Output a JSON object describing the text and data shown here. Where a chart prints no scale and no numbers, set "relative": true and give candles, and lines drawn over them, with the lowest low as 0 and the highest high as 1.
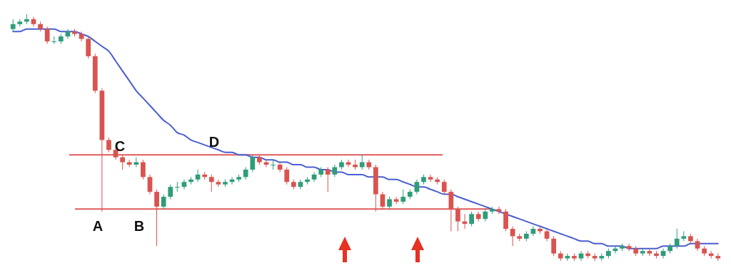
{
  "chart_data": {
    "type": "candlestick",
    "relative": true,
    "categories": [
      null,
      null,
      null,
      null,
      null,
      null,
      null,
      null,
      null,
      null,
      null,
      null,
      null,
      null,
      null,
      null,
      null,
      null,
      null,
      null,
      null,
      null,
      null,
      null,
      null,
      null,
      null,
      null,
      null,
      null,
      null,
      null,
      null,
      null,
      null,
      null,
      null,
      null,
      null,
      null,
      null,
      null,
      null,
      null,
      null,
      null,
      null,
      null,
      null,
      null,
      null,
      null,
      null,
      null,
      null,
      null,
      null,
      null,
      null,
      null,
      null,
      null,
      null,
      null,
      null,
      null,
      null,
      null,
      null,
      null,
      null,
      null,
      null,
      null,
      null,
      null,
      null,
      null,
      null,
      null,
      null,
      null,
      null,
      null,
      null,
      null,
      null,
      null,
      null,
      null,
      null,
      null,
      null,
      null,
      null,
      null,
      null,
      null,
      null,
      null,
      null,
      null,
      null,
      null
    ],
    "colors": [
      "#2e9d7a",
      "#2e9d7a",
      "#2e9d7a",
      "#d9534f",
      "#d9534f",
      "#d9534f",
      "#2e9d7a",
      "#2e9d7a",
      "#2e9d7a",
      "#d9534f",
      "#d9534f",
      "#d9534f",
      "#d9534f",
      "#d9534f",
      "#d9534f",
      "#d9534f",
      "#d9534f",
      "#d9534f",
      "#2e9d7a",
      "#d9534f",
      "#d9534f",
      "#d9534f",
      "#2e9d7a",
      "#2e9d7a",
      "#2e9d7a",
      "#2e9d7a",
      "#2e9d7a",
      "#2e9d7a",
      "#d9534f",
      "#d9534f",
      "#d9534f",
      "#2e9d7a",
      "#2e9d7a",
      "#2e9d7a",
      "#2e9d7a",
      "#2e9d7a",
      "#d9534f",
      "#d9534f",
      "#2e9d7a",
      "#d9534f",
      "#d9534f",
      "#d9534f",
      "#2e9d7a",
      "#2e9d7a",
      "#2e9d7a",
      "#2e9d7a",
      "#d9534f",
      "#2e9d7a",
      "#2e9d7a",
      "#d9534f",
      "#d9534f",
      "#2e9d7a",
      "#d9534f",
      "#d9534f",
      "#d9534f",
      "#2e9d7a",
      "#d9534f",
      "#2e9d7a",
      "#2e9d7a",
      "#2e9d7a",
      "#2e9d7a",
      "#d9534f",
      "#d9534f",
      "#d9534f",
      "#d9534f",
      "#d9534f",
      "#d9534f",
      "#2e9d7a",
      "#d9534f",
      "#2e9d7a",
      "#2e9d7a",
      "#d9534f",
      "#d9534f",
      "#d9534f",
      "#d9534f",
      "#2e9d7a",
      "#2e9d7a",
      "#d9534f",
      "#d9534f",
      "#d9534f",
      "#d9534f",
      "#2e9d7a",
      "#d9534f",
      "#2e9d7a",
      "#d9534f",
      "#d9534f",
      "#2e9d7a",
      "#2e9d7a",
      "#2e9d7a",
      "#2e9d7a",
      "#d9534f",
      "#d9534f",
      "#2e9d7a",
      "#d9534f",
      "#d9534f",
      "#2e9d7a",
      "#2e9d7a",
      "#2e9d7a",
      "#2e9d7a",
      "#d9534f",
      "#d9534f",
      "#d9534f",
      "#d9534f",
      "#d9534f"
    ],
    "ohlc": [
      [
        0.94,
        0.98,
        0.93,
        0.96
      ],
      [
        0.96,
        0.98,
        0.95,
        0.97
      ],
      [
        0.97,
        1.0,
        0.96,
        0.98
      ],
      [
        0.98,
        0.99,
        0.95,
        0.96
      ],
      [
        0.96,
        0.97,
        0.93,
        0.94
      ],
      [
        0.94,
        0.95,
        0.88,
        0.89
      ],
      [
        0.89,
        0.91,
        0.88,
        0.89
      ],
      [
        0.89,
        0.92,
        0.88,
        0.91
      ],
      [
        0.91,
        0.94,
        0.9,
        0.93
      ],
      [
        0.93,
        0.94,
        0.91,
        0.92
      ],
      [
        0.92,
        0.93,
        0.89,
        0.9
      ],
      [
        0.9,
        0.91,
        0.82,
        0.83
      ],
      [
        0.83,
        0.84,
        0.68,
        0.69
      ],
      [
        0.69,
        0.7,
        0.2,
        0.49
      ],
      [
        0.49,
        0.5,
        0.44,
        0.45
      ],
      [
        0.45,
        0.46,
        0.41,
        0.42
      ],
      [
        0.42,
        0.43,
        0.37,
        0.4
      ],
      [
        0.4,
        0.41,
        0.38,
        0.39
      ],
      [
        0.39,
        0.42,
        0.38,
        0.4
      ],
      [
        0.4,
        0.41,
        0.33,
        0.34
      ],
      [
        0.34,
        0.35,
        0.27,
        0.28
      ],
      [
        0.28,
        0.29,
        0.06,
        0.22
      ],
      [
        0.22,
        0.27,
        0.21,
        0.26
      ],
      [
        0.26,
        0.31,
        0.25,
        0.3
      ],
      [
        0.3,
        0.32,
        0.28,
        0.3
      ],
      [
        0.3,
        0.33,
        0.29,
        0.32
      ],
      [
        0.32,
        0.34,
        0.31,
        0.33
      ],
      [
        0.33,
        0.37,
        0.32,
        0.35
      ],
      [
        0.35,
        0.36,
        0.33,
        0.34
      ],
      [
        0.34,
        0.35,
        0.28,
        0.32
      ],
      [
        0.32,
        0.33,
        0.3,
        0.31
      ],
      [
        0.31,
        0.33,
        0.3,
        0.32
      ],
      [
        0.32,
        0.34,
        0.31,
        0.33
      ],
      [
        0.33,
        0.35,
        0.32,
        0.34
      ],
      [
        0.34,
        0.38,
        0.33,
        0.37
      ],
      [
        0.37,
        0.43,
        0.36,
        0.42
      ],
      [
        0.42,
        0.43,
        0.39,
        0.4
      ],
      [
        0.4,
        0.41,
        0.38,
        0.39
      ],
      [
        0.39,
        0.41,
        0.37,
        0.39
      ],
      [
        0.39,
        0.4,
        0.36,
        0.37
      ],
      [
        0.37,
        0.38,
        0.31,
        0.32
      ],
      [
        0.32,
        0.33,
        0.29,
        0.3
      ],
      [
        0.3,
        0.33,
        0.29,
        0.32
      ],
      [
        0.32,
        0.34,
        0.31,
        0.33
      ],
      [
        0.33,
        0.36,
        0.32,
        0.35
      ],
      [
        0.35,
        0.38,
        0.34,
        0.37
      ],
      [
        0.37,
        0.38,
        0.28,
        0.35
      ],
      [
        0.35,
        0.39,
        0.34,
        0.38
      ],
      [
        0.38,
        0.41,
        0.37,
        0.4
      ],
      [
        0.4,
        0.41,
        0.38,
        0.39
      ],
      [
        0.39,
        0.41,
        0.37,
        0.38
      ],
      [
        0.38,
        0.43,
        0.37,
        0.4
      ],
      [
        0.4,
        0.41,
        0.37,
        0.38
      ],
      [
        0.38,
        0.39,
        0.2,
        0.27
      ],
      [
        0.27,
        0.28,
        0.21,
        0.22
      ],
      [
        0.22,
        0.26,
        0.21,
        0.25
      ],
      [
        0.25,
        0.26,
        0.23,
        0.24
      ],
      [
        0.24,
        0.29,
        0.23,
        0.26
      ],
      [
        0.26,
        0.29,
        0.25,
        0.28
      ],
      [
        0.28,
        0.33,
        0.27,
        0.32
      ],
      [
        0.32,
        0.35,
        0.31,
        0.34
      ],
      [
        0.34,
        0.35,
        0.32,
        0.33
      ],
      [
        0.33,
        0.34,
        0.31,
        0.32
      ],
      [
        0.32,
        0.33,
        0.27,
        0.28
      ],
      [
        0.28,
        0.29,
        0.12,
        0.21
      ],
      [
        0.21,
        0.22,
        0.12,
        0.16
      ],
      [
        0.16,
        0.19,
        0.13,
        0.15
      ],
      [
        0.15,
        0.2,
        0.14,
        0.19
      ],
      [
        0.19,
        0.2,
        0.16,
        0.17
      ],
      [
        0.17,
        0.21,
        0.16,
        0.2
      ],
      [
        0.2,
        0.22,
        0.19,
        0.21
      ],
      [
        0.21,
        0.22,
        0.19,
        0.2
      ],
      [
        0.2,
        0.21,
        0.12,
        0.13
      ],
      [
        0.13,
        0.14,
        0.06,
        0.1
      ],
      [
        0.1,
        0.11,
        0.08,
        0.09
      ],
      [
        0.09,
        0.12,
        0.08,
        0.11
      ],
      [
        0.11,
        0.14,
        0.1,
        0.13
      ],
      [
        0.13,
        0.14,
        0.11,
        0.12
      ],
      [
        0.12,
        0.13,
        0.08,
        0.09
      ],
      [
        0.09,
        0.1,
        0.02,
        0.03
      ],
      [
        0.03,
        0.04,
        0.0,
        0.01
      ],
      [
        0.01,
        0.03,
        0.0,
        0.02
      ],
      [
        0.02,
        0.03,
        0.0,
        0.01
      ],
      [
        0.01,
        0.04,
        0.0,
        0.03
      ],
      [
        0.03,
        0.04,
        0.01,
        0.02
      ],
      [
        0.02,
        0.03,
        0.0,
        0.01
      ],
      [
        0.01,
        0.03,
        0.0,
        0.02
      ],
      [
        0.02,
        0.05,
        0.01,
        0.04
      ],
      [
        0.04,
        0.06,
        0.03,
        0.05
      ],
      [
        0.05,
        0.07,
        0.04,
        0.06
      ],
      [
        0.06,
        0.07,
        0.04,
        0.05
      ],
      [
        0.05,
        0.06,
        0.02,
        0.03
      ],
      [
        0.03,
        0.05,
        0.02,
        0.04
      ],
      [
        0.04,
        0.05,
        0.02,
        0.03
      ],
      [
        0.03,
        0.04,
        0.01,
        0.02
      ],
      [
        0.02,
        0.05,
        0.01,
        0.04
      ],
      [
        0.04,
        0.07,
        0.03,
        0.06
      ],
      [
        0.06,
        0.13,
        0.05,
        0.09
      ],
      [
        0.09,
        0.12,
        0.08,
        0.1
      ],
      [
        0.1,
        0.11,
        0.07,
        0.08
      ],
      [
        0.08,
        0.09,
        0.04,
        0.05
      ],
      [
        0.05,
        0.06,
        0.02,
        0.03
      ],
      [
        0.03,
        0.04,
        0.01,
        0.02
      ],
      [
        0.02,
        0.03,
        0.0,
        0.01
      ]
    ],
    "series": [
      {
        "type": "line",
        "color": "#4a5fd0",
        "values": [
          0.93,
          0.93,
          0.94,
          0.94,
          0.94,
          0.94,
          0.94,
          0.93,
          0.93,
          0.93,
          0.92,
          0.91,
          0.89,
          0.87,
          0.85,
          0.81,
          0.77,
          0.73,
          0.69,
          0.66,
          0.63,
          0.6,
          0.57,
          0.55,
          0.52,
          0.51,
          0.49,
          0.48,
          0.47,
          0.46,
          0.45,
          0.44,
          0.44,
          0.43,
          0.43,
          0.42,
          0.42,
          0.41,
          0.41,
          0.4,
          0.4,
          0.39,
          0.39,
          0.38,
          0.38,
          0.37,
          0.37,
          0.36,
          0.36,
          0.35,
          0.35,
          0.35,
          0.34,
          0.34,
          0.34,
          0.33,
          0.33,
          0.32,
          0.31,
          0.3,
          0.3,
          0.29,
          0.28,
          0.27,
          0.27,
          0.26,
          0.25,
          0.24,
          0.23,
          0.22,
          0.21,
          0.2,
          0.19,
          0.18,
          0.17,
          0.16,
          0.15,
          0.14,
          0.13,
          0.12,
          0.11,
          0.1,
          0.09,
          0.08,
          0.08,
          0.07,
          0.07,
          0.06,
          0.06,
          0.06,
          0.05,
          0.05,
          0.05,
          0.05,
          0.05,
          0.06,
          0.06,
          0.06,
          0.06,
          0.07,
          0.07,
          0.07,
          0.07,
          0.07
        ]
      }
    ],
    "ref_lines": [
      {
        "axis": "y",
        "value": 0.43,
        "color": "#e05a5a"
      },
      {
        "axis": "y",
        "value": 0.21,
        "color": "#e05a5a"
      }
    ],
    "annotations": [
      "A",
      "B",
      "C",
      "D"
    ]
  }
}
